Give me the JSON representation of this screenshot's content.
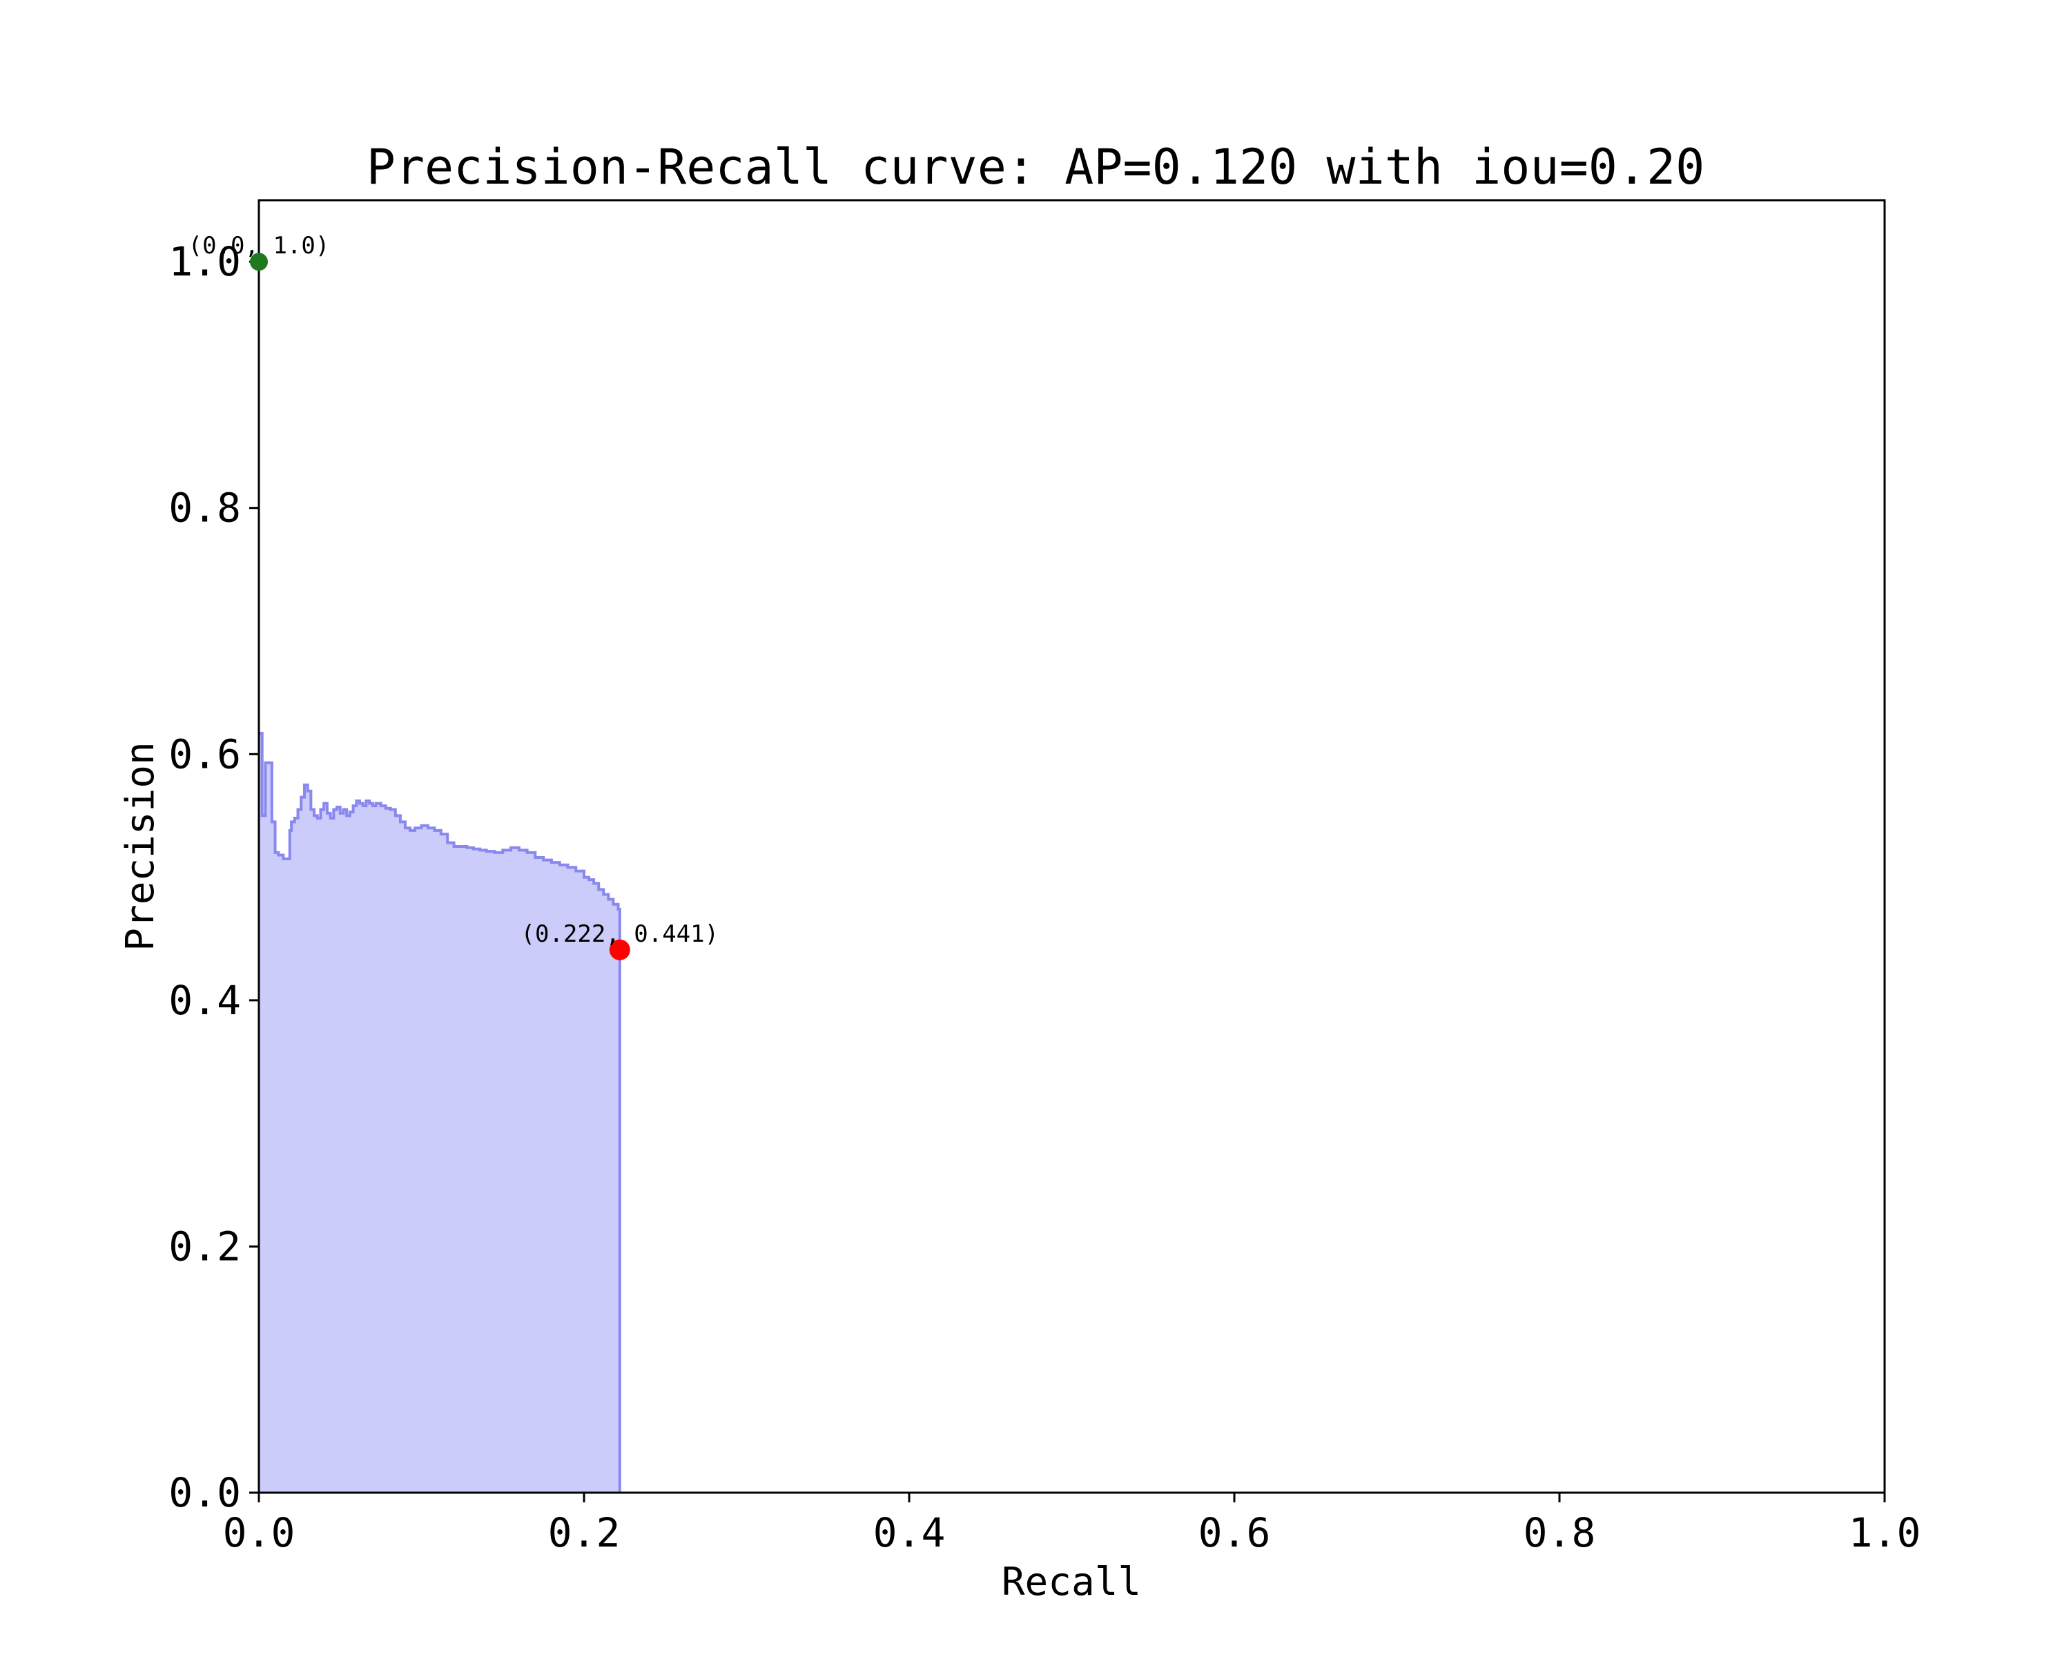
{
  "chart_data": {
    "type": "area",
    "title": "Precision-Recall curve: AP=0.120 with iou=0.20",
    "xlabel": "Recall",
    "ylabel": "Precision",
    "xlim": [
      0.0,
      1.0
    ],
    "ylim": [
      0.0,
      1.05
    ],
    "xticks": [
      "0.0",
      "0.2",
      "0.4",
      "0.6",
      "0.8",
      "1.0"
    ],
    "yticks": [
      "0.0",
      "0.2",
      "0.4",
      "0.6",
      "0.8",
      "1.0"
    ],
    "grid": false,
    "legend": "none",
    "series": [
      {
        "recall": [
          0.0,
          0.002,
          0.002,
          0.004,
          0.004,
          0.007,
          0.008,
          0.01,
          0.012,
          0.015,
          0.017,
          0.019,
          0.02,
          0.022,
          0.024,
          0.026,
          0.028,
          0.03,
          0.032,
          0.034,
          0.036,
          0.038,
          0.04,
          0.042,
          0.044,
          0.046,
          0.048,
          0.05,
          0.052,
          0.054,
          0.056,
          0.058,
          0.06,
          0.062,
          0.064,
          0.066,
          0.068,
          0.07,
          0.072,
          0.075,
          0.078,
          0.081,
          0.084,
          0.087,
          0.09,
          0.093,
          0.096,
          0.1,
          0.104,
          0.108,
          0.112,
          0.116,
          0.12,
          0.124,
          0.128,
          0.132,
          0.136,
          0.14,
          0.145,
          0.15,
          0.155,
          0.16,
          0.165,
          0.17,
          0.175,
          0.18,
          0.185,
          0.19,
          0.195,
          0.2,
          0.203,
          0.206,
          0.209,
          0.212,
          0.215,
          0.218,
          0.221,
          0.222,
          0.222
        ],
        "precision": [
          0.617,
          0.617,
          0.55,
          0.55,
          0.593,
          0.593,
          0.545,
          0.52,
          0.518,
          0.515,
          0.515,
          0.538,
          0.545,
          0.548,
          0.555,
          0.565,
          0.575,
          0.57,
          0.555,
          0.55,
          0.548,
          0.555,
          0.56,
          0.552,
          0.548,
          0.555,
          0.557,
          0.552,
          0.555,
          0.55,
          0.553,
          0.558,
          0.562,
          0.56,
          0.558,
          0.562,
          0.56,
          0.558,
          0.56,
          0.558,
          0.556,
          0.555,
          0.55,
          0.545,
          0.54,
          0.538,
          0.54,
          0.542,
          0.54,
          0.538,
          0.535,
          0.528,
          0.525,
          0.525,
          0.524,
          0.523,
          0.522,
          0.521,
          0.52,
          0.522,
          0.524,
          0.522,
          0.52,
          0.516,
          0.514,
          0.512,
          0.51,
          0.508,
          0.505,
          0.5,
          0.498,
          0.495,
          0.49,
          0.486,
          0.482,
          0.478,
          0.474,
          0.472,
          0.0
        ],
        "color": "#8888ee",
        "fill": "#ccccfa"
      }
    ],
    "points": [
      {
        "recall": 0.0,
        "precision": 1.0,
        "label": "(0.0, 1.0)",
        "color": "#1f7a1f"
      },
      {
        "recall": 0.222,
        "precision": 0.441,
        "label": "(0.222, 0.441)",
        "color": "#ff0000"
      }
    ]
  }
}
